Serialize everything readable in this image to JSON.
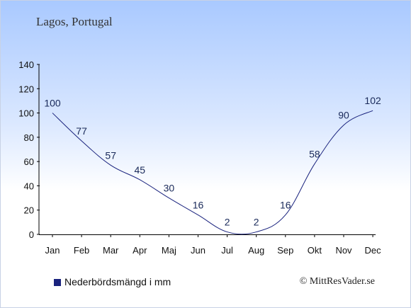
{
  "header": {
    "title": "Lagos, Portugal"
  },
  "legend": {
    "label": "Nederbördsmängd i mm"
  },
  "footer": {
    "copyright": "© MittResVader.se"
  },
  "colors": {
    "series": "#1a237e",
    "label": "#1a2a5a",
    "axis": "#000000"
  },
  "chart_data": {
    "type": "line",
    "categories": [
      "Jan",
      "Feb",
      "Mar",
      "Apr",
      "Maj",
      "Jun",
      "Jul",
      "Aug",
      "Sep",
      "Okt",
      "Nov",
      "Dec"
    ],
    "series": [
      {
        "name": "Nederbördsmängd i mm",
        "values": [
          100,
          77,
          57,
          45,
          30,
          16,
          2,
          2,
          16,
          58,
          90,
          102
        ]
      }
    ],
    "ylim": [
      0,
      140
    ],
    "yticks": [
      0,
      20,
      40,
      60,
      80,
      100,
      120,
      140
    ],
    "grid": false,
    "legend": "bottom-left"
  }
}
